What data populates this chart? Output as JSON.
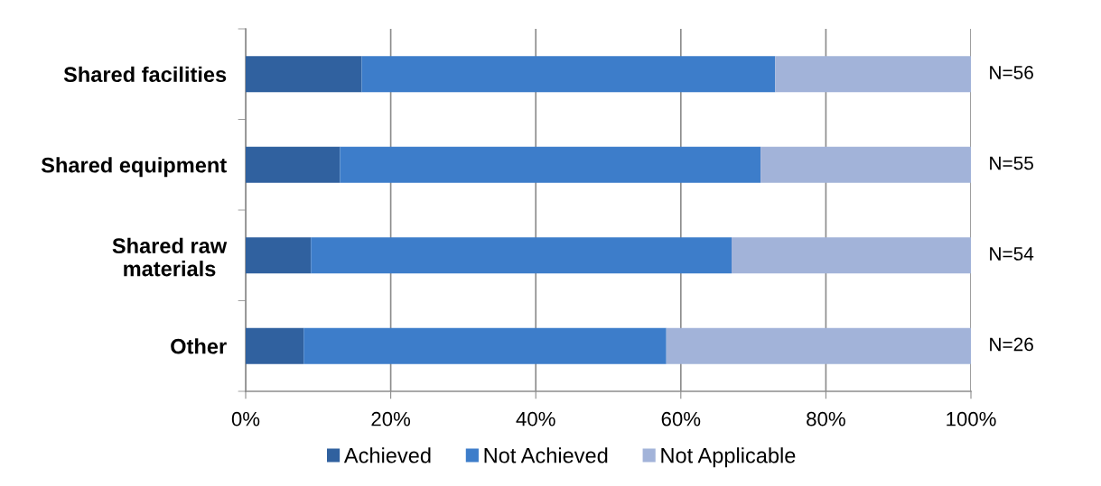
{
  "chart_data": {
    "type": "bar",
    "orientation": "horizontal",
    "stacked": true,
    "categories": [
      "Shared facilities",
      "Shared equipment",
      "Shared raw\nmaterials",
      "Other"
    ],
    "series": [
      {
        "name": "Achieved",
        "color": "#30619f",
        "values": [
          16,
          13,
          9,
          8
        ]
      },
      {
        "name": "Not Achieved",
        "color": "#3d7dca",
        "values": [
          57,
          58,
          58,
          50
        ]
      },
      {
        "name": "Not Applicable",
        "color": "#a2b3d9",
        "values": [
          27,
          29,
          33,
          42
        ]
      }
    ],
    "xlim": [
      0,
      100
    ],
    "xticks": [
      {
        "value": 0,
        "label": "0%"
      },
      {
        "value": 20,
        "label": "20%"
      },
      {
        "value": 40,
        "label": "40%"
      },
      {
        "value": 60,
        "label": "60%"
      },
      {
        "value": 80,
        "label": "80%"
      },
      {
        "value": 100,
        "label": "100%"
      }
    ],
    "grid": "x",
    "legend": "bottom",
    "annotations": [
      "N=56",
      "N=55",
      "N=54",
      "N=26"
    ]
  }
}
